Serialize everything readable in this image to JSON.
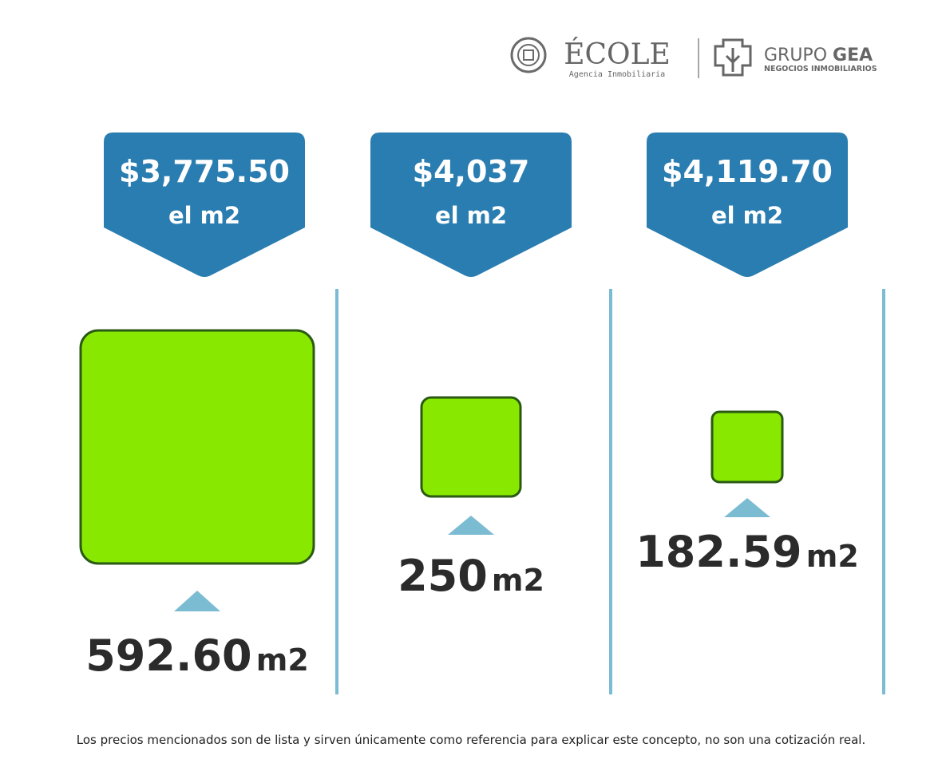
{
  "header": {
    "brand": "ÉCOLE",
    "brand_tagline": "Agencia Inmobiliaria",
    "partner_light": "GRUPO",
    "partner_bold": "GEA",
    "partner_tagline": "NEGOCIOS INMOBILIARIOS"
  },
  "panels": [
    {
      "price": "$3,775.50",
      "price_unit": "el m2",
      "area": "592.60",
      "area_unit": "m2"
    },
    {
      "price": "$4,037",
      "price_unit": "el m2",
      "area": "250",
      "area_unit": "m2"
    },
    {
      "price": "$4,119.70",
      "price_unit": "el m2",
      "area": "182.59",
      "area_unit": "m2"
    }
  ],
  "footer": {
    "note": "Los precios mencionados son de lista y sirven únicamente como referencia para explicar este concepto, no son una cotización real."
  }
}
